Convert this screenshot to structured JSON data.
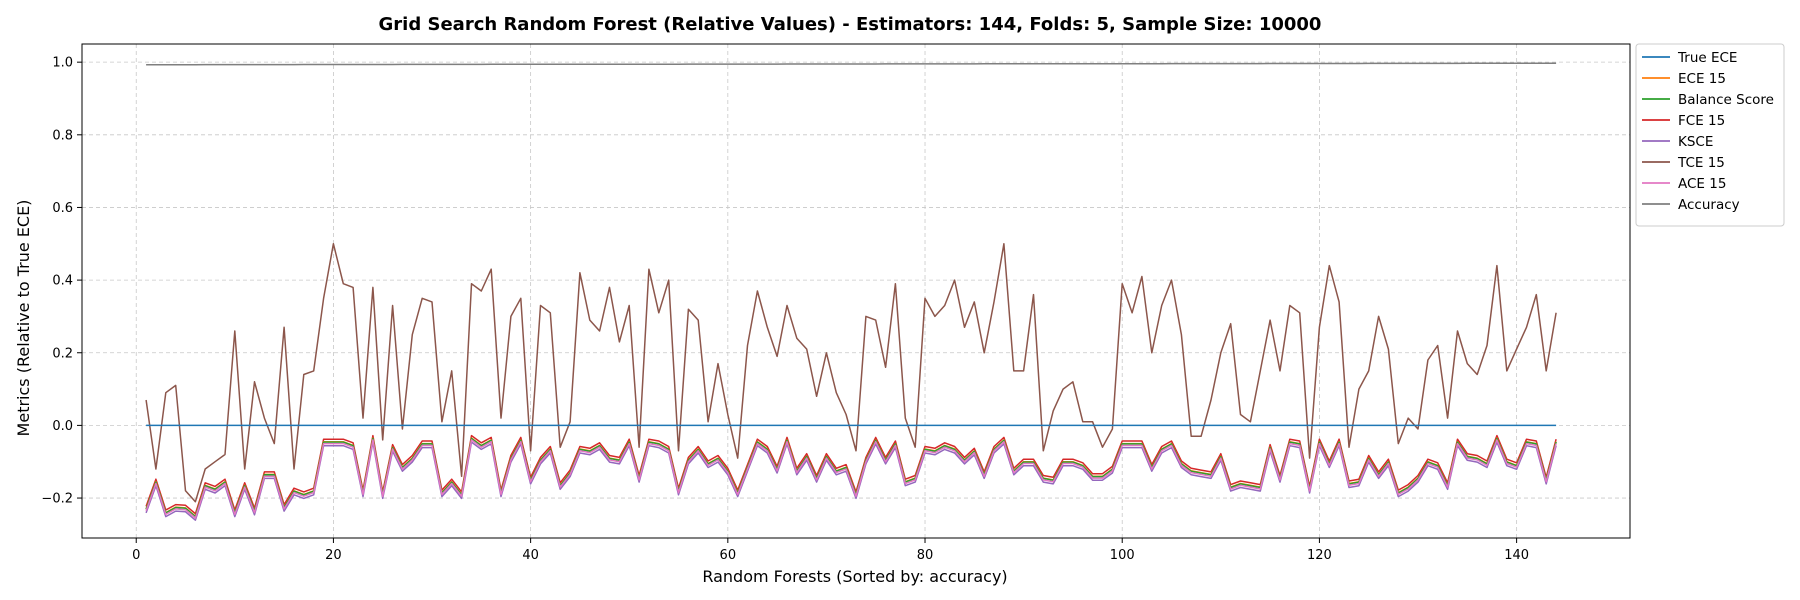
{
  "chart_data": {
    "type": "line",
    "title": "Grid Search Random Forest (Relative Values) - Estimators: 144, Folds: 5, Sample Size: 10000",
    "xlabel": "Random Forests (Sorted by: accuracy)",
    "ylabel": "Metrics (Relative to True ECE)",
    "xlim": [
      -5.5,
      151.5
    ],
    "ylim": [
      -0.31,
      1.05
    ],
    "xticks": [
      0,
      20,
      40,
      60,
      80,
      100,
      120,
      140
    ],
    "yticks": [
      -0.2,
      0.0,
      0.2,
      0.4,
      0.6,
      0.8,
      1.0
    ],
    "xtick_labels": [
      "0",
      "20",
      "40",
      "60",
      "80",
      "100",
      "120",
      "140"
    ],
    "ytick_labels": [
      "−0.2",
      "0.0",
      "0.2",
      "0.4",
      "0.6",
      "0.8",
      "1.0"
    ],
    "grid": true,
    "legend_position": "outside-top-right",
    "x_range": [
      1,
      144
    ],
    "series": [
      {
        "name": "True ECE",
        "color": "#1f77b4",
        "constant": 0.0
      },
      {
        "name": "ECE 15",
        "color": "#ff7f0e",
        "offset_from_base": 0.005
      },
      {
        "name": "Balance Score",
        "color": "#2ca02c",
        "offset_from_base": 0.004
      },
      {
        "name": "FCE 15",
        "color": "#d62728",
        "offset_from_base": 0.012
      },
      {
        "name": "KSCE",
        "color": "#9467bd",
        "offset_from_base": -0.006
      },
      {
        "name": "TCE 15",
        "color": "#8c564b",
        "values": [
          0.07,
          -0.12,
          0.09,
          0.11,
          -0.18,
          -0.21,
          -0.12,
          -0.1,
          -0.08,
          0.26,
          -0.12,
          0.12,
          0.02,
          -0.05,
          0.27,
          -0.12,
          0.14,
          0.15,
          0.35,
          0.5,
          0.39,
          0.38,
          0.02,
          0.38,
          -0.04,
          0.33,
          -0.01,
          0.25,
          0.35,
          0.34,
          0.01,
          0.15,
          -0.14,
          0.39,
          0.37,
          0.43,
          0.02,
          0.3,
          0.35,
          -0.07,
          0.33,
          0.31,
          -0.06,
          0.01,
          0.42,
          0.29,
          0.26,
          0.38,
          0.23,
          0.33,
          -0.06,
          0.43,
          0.31,
          0.4,
          -0.07,
          0.32,
          0.29,
          0.01,
          0.17,
          0.03,
          -0.09,
          0.22,
          0.37,
          0.27,
          0.19,
          0.33,
          0.24,
          0.21,
          0.08,
          0.2,
          0.09,
          0.03,
          -0.07,
          0.3,
          0.29,
          0.16,
          0.39,
          0.02,
          -0.06,
          0.35,
          0.3,
          0.33,
          0.4,
          0.27,
          0.34,
          0.2,
          0.34,
          0.5,
          0.15,
          0.15,
          0.36,
          -0.07,
          0.04,
          0.1,
          0.12,
          0.01,
          0.01,
          -0.06,
          -0.01,
          0.39,
          0.31,
          0.41,
          0.2,
          0.33,
          0.4,
          0.25,
          -0.03,
          -0.03,
          0.07,
          0.2,
          0.28,
          0.03,
          0.01,
          0.15,
          0.29,
          0.15,
          0.33,
          0.31,
          -0.09,
          0.27,
          0.44,
          0.34,
          -0.06,
          0.1,
          0.15,
          0.3,
          0.21,
          -0.05,
          0.02,
          -0.01,
          0.18,
          0.22,
          0.02,
          0.26,
          0.17,
          0.14,
          0.22,
          0.44,
          0.15,
          0.21,
          0.27,
          0.36,
          0.15,
          0.31
        ]
      },
      {
        "name": "ACE 15",
        "color": "#e377c2",
        "values": [
          -0.235,
          -0.16,
          -0.245,
          -0.23,
          -0.232,
          -0.255,
          -0.17,
          -0.18,
          -0.16,
          -0.245,
          -0.17,
          -0.24,
          -0.14,
          -0.14,
          -0.23,
          -0.185,
          -0.195,
          -0.185,
          -0.05,
          -0.05,
          -0.05,
          -0.06,
          -0.19,
          -0.04,
          -0.195,
          -0.065,
          -0.12,
          -0.095,
          -0.055,
          -0.055,
          -0.19,
          -0.16,
          -0.195,
          -0.04,
          -0.06,
          -0.045,
          -0.19,
          -0.095,
          -0.045,
          -0.155,
          -0.1,
          -0.07,
          -0.17,
          -0.135,
          -0.07,
          -0.075,
          -0.06,
          -0.095,
          -0.1,
          -0.05,
          -0.15,
          -0.05,
          -0.055,
          -0.07,
          -0.185,
          -0.1,
          -0.07,
          -0.11,
          -0.095,
          -0.13,
          -0.19,
          -0.12,
          -0.05,
          -0.07,
          -0.125,
          -0.045,
          -0.13,
          -0.09,
          -0.15,
          -0.09,
          -0.13,
          -0.12,
          -0.195,
          -0.1,
          -0.045,
          -0.1,
          -0.055,
          -0.16,
          -0.15,
          -0.07,
          -0.075,
          -0.06,
          -0.07,
          -0.1,
          -0.075,
          -0.14,
          -0.07,
          -0.045,
          -0.13,
          -0.105,
          -0.105,
          -0.15,
          -0.155,
          -0.105,
          -0.105,
          -0.115,
          -0.145,
          -0.145,
          -0.125,
          -0.055,
          -0.055,
          -0.055,
          -0.12,
          -0.07,
          -0.055,
          -0.11,
          -0.13,
          -0.135,
          -0.14,
          -0.09,
          -0.175,
          -0.165,
          -0.17,
          -0.175,
          -0.065,
          -0.15,
          -0.05,
          -0.055,
          -0.18,
          -0.05,
          -0.11,
          -0.05,
          -0.165,
          -0.16,
          -0.095,
          -0.14,
          -0.105,
          -0.19,
          -0.175,
          -0.15,
          -0.105,
          -0.115,
          -0.17,
          -0.05,
          -0.09,
          -0.095,
          -0.11,
          -0.04,
          -0.105,
          -0.115,
          -0.05,
          -0.055,
          -0.155,
          -0.05
        ]
      },
      {
        "name": "Accuracy",
        "color": "#7f7f7f",
        "start": 0.993,
        "end": 0.997
      }
    ]
  }
}
